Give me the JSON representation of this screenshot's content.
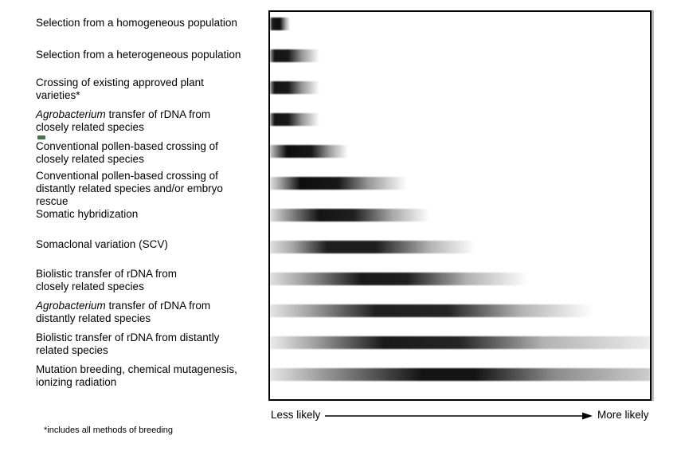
{
  "figure": {
    "footnote": "*includes all methods of breeding",
    "colors": {
      "bar": "#000000",
      "box_border": "#000000",
      "background": "#ffffff",
      "text": "#000000",
      "artifact_green": "#47714f"
    }
  },
  "chart_data": {
    "type": "heatmap",
    "title": "",
    "xlabel": "",
    "ylabel": "",
    "legend": "none",
    "grid": "off",
    "x_axis": {
      "min_label": "Less likely",
      "max_label": "More likely",
      "range_pct": [
        0,
        100
      ]
    },
    "rows": [
      {
        "label": "Selection from a homogeneous population",
        "label_lines": [
          [
            {
              "text": "Selection from a homogeneous population"
            }
          ]
        ],
        "extent_pct": [
          0,
          5.3
        ],
        "peak_pct": [
          0.5,
          2.6
        ],
        "gradient_stops": [
          [
            0,
            0.3
          ],
          [
            0.6,
            0.9
          ],
          [
            2.6,
            0.95
          ],
          [
            4.2,
            0.3
          ],
          [
            5.3,
            0
          ]
        ]
      },
      {
        "label": "Selection from a heterogeneous population",
        "label_lines": [
          [
            {
              "text": "Selection from a heterogeneous population"
            }
          ]
        ],
        "extent_pct": [
          0,
          13
        ],
        "peak_pct": [
          1,
          4.8
        ],
        "gradient_stops": [
          [
            0,
            0.35
          ],
          [
            1.2,
            0.92
          ],
          [
            4.8,
            0.9
          ],
          [
            8.5,
            0.4
          ],
          [
            13,
            0
          ]
        ]
      },
      {
        "label": "Crossing of existing approved plant varieties*",
        "label_lines": [
          [
            {
              "text": "Crossing of existing approved plant"
            }
          ],
          [
            {
              "text": "varieties*"
            }
          ]
        ],
        "extent_pct": [
          0,
          13
        ],
        "peak_pct": [
          1,
          4.8
        ],
        "gradient_stops": [
          [
            0,
            0.35
          ],
          [
            1.2,
            0.92
          ],
          [
            4.8,
            0.9
          ],
          [
            8.5,
            0.4
          ],
          [
            13,
            0
          ]
        ]
      },
      {
        "label": "Agrobacterium transfer of rDNA from closely related species",
        "label_lines": [
          [
            {
              "text": "Agrobacterium",
              "italic": true
            },
            {
              "text": " transfer of rDNA from"
            }
          ],
          [
            {
              "text": "closely related species"
            }
          ]
        ],
        "extent_pct": [
          0,
          13
        ],
        "peak_pct": [
          1,
          4.8
        ],
        "gradient_stops": [
          [
            0,
            0.35
          ],
          [
            1.2,
            0.92
          ],
          [
            4.8,
            0.9
          ],
          [
            8.5,
            0.4
          ],
          [
            13,
            0
          ]
        ]
      },
      {
        "label": "Conventional pollen-based crossing of closely related species",
        "label_lines": [
          [
            {
              "text": "Conventional pollen-based crossing of"
            }
          ],
          [
            {
              "text": "closely related species"
            }
          ]
        ],
        "extent_pct": [
          0,
          20.5
        ],
        "peak_pct": [
          4,
          12
        ],
        "gradient_stops": [
          [
            0,
            0.2
          ],
          [
            2,
            0.55
          ],
          [
            4.5,
            0.95
          ],
          [
            11,
            0.9
          ],
          [
            15.5,
            0.4
          ],
          [
            20.5,
            0
          ]
        ]
      },
      {
        "label": "Conventional pollen-based crossing of distantly related species and/or embryo rescue",
        "label_lines": [
          [
            {
              "text": "Conventional pollen-based crossing of"
            }
          ],
          [
            {
              "text": "distantly related species and/or embryo"
            }
          ],
          [
            {
              "text": "rescue"
            }
          ]
        ],
        "extent_pct": [
          0,
          36
        ],
        "peak_pct": [
          8,
          19
        ],
        "gradient_stops": [
          [
            0,
            0.12
          ],
          [
            3,
            0.4
          ],
          [
            8,
            0.95
          ],
          [
            18,
            0.9
          ],
          [
            26,
            0.4
          ],
          [
            36,
            0
          ]
        ]
      },
      {
        "label": "Somatic hybridization",
        "label_lines": [
          [
            {
              "text": "Somatic hybridization"
            }
          ]
        ],
        "extent_pct": [
          0,
          42
        ],
        "peak_pct": [
          10,
          23
        ],
        "gradient_stops": [
          [
            0,
            0.12
          ],
          [
            4,
            0.38
          ],
          [
            13,
            0.92
          ],
          [
            22,
            0.88
          ],
          [
            32,
            0.35
          ],
          [
            42,
            0
          ]
        ]
      },
      {
        "label": "Somaclonal variation (SCV)",
        "label_lines": [
          [
            {
              "text": "Somaclonal variation (SCV)"
            }
          ]
        ],
        "extent_pct": [
          0,
          54
        ],
        "peak_pct": [
          15,
          30
        ],
        "gradient_stops": [
          [
            0,
            0.12
          ],
          [
            6,
            0.35
          ],
          [
            15,
            0.88
          ],
          [
            28,
            0.88
          ],
          [
            42,
            0.3
          ],
          [
            54,
            0
          ]
        ]
      },
      {
        "label": "Biolistic transfer of rDNA from closely related species",
        "label_lines": [
          [
            {
              "text": "Biolistic transfer of rDNA from"
            }
          ],
          [
            {
              "text": "closely related species"
            }
          ]
        ],
        "extent_pct": [
          0,
          68
        ],
        "peak_pct": [
          24,
          36
        ],
        "gradient_stops": [
          [
            0,
            0.12
          ],
          [
            8,
            0.35
          ],
          [
            24,
            0.9
          ],
          [
            36,
            0.88
          ],
          [
            52,
            0.3
          ],
          [
            68,
            0
          ]
        ]
      },
      {
        "label": "Agrobacterium transfer of rDNA from distantly related species",
        "label_lines": [
          [
            {
              "text": "Agrobacterium",
              "italic": true
            },
            {
              "text": " transfer of rDNA from"
            }
          ],
          [
            {
              "text": "distantly related species"
            }
          ]
        ],
        "extent_pct": [
          0,
          85
        ],
        "peak_pct": [
          28,
          47
        ],
        "gradient_stops": [
          [
            0,
            0.1
          ],
          [
            10,
            0.35
          ],
          [
            28,
            0.88
          ],
          [
            47,
            0.85
          ],
          [
            66,
            0.3
          ],
          [
            85,
            0
          ]
        ]
      },
      {
        "label": "Biolistic transfer of rDNA from distantly related species",
        "label_lines": [
          [
            {
              "text": "Biolistic transfer of rDNA from distantly"
            }
          ],
          [
            {
              "text": "related species"
            }
          ]
        ],
        "extent_pct": [
          0,
          100
        ],
        "peak_pct": [
          30,
          50
        ],
        "gradient_stops": [
          [
            0,
            0.08
          ],
          [
            11,
            0.35
          ],
          [
            30,
            0.9
          ],
          [
            50,
            0.85
          ],
          [
            72,
            0.3
          ],
          [
            100,
            0.08
          ]
        ]
      },
      {
        "label": "Mutation breeding, chemical mutagenesis, ionizing radiation",
        "label_lines": [
          [
            {
              "text": "Mutation breeding, chemical mutagenesis,"
            }
          ],
          [
            {
              "text": "ionizing radiation"
            }
          ]
        ],
        "extent_pct": [
          0,
          100
        ],
        "peak_pct": [
          40,
          55
        ],
        "gradient_stops": [
          [
            0,
            0.1
          ],
          [
            14,
            0.4
          ],
          [
            40,
            0.92
          ],
          [
            54,
            0.92
          ],
          [
            75,
            0.45
          ],
          [
            100,
            0.2
          ]
        ]
      }
    ]
  }
}
